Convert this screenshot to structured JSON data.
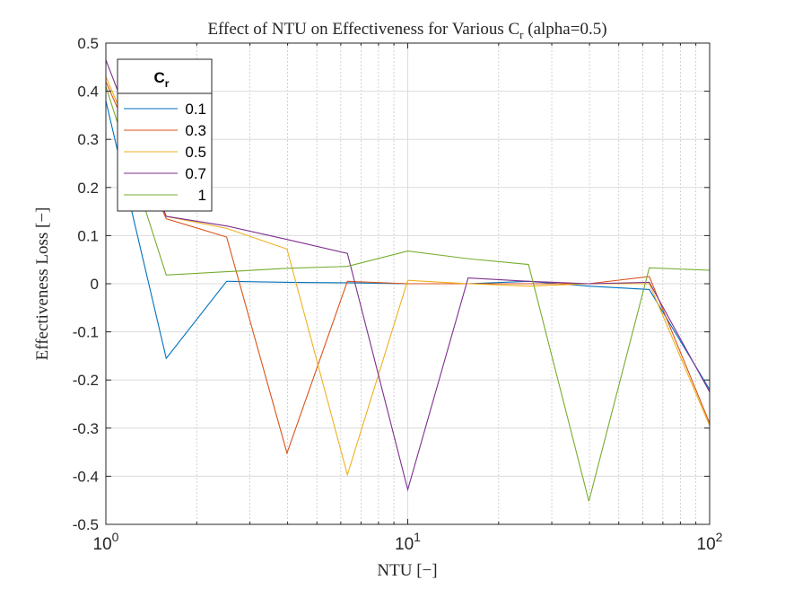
{
  "chart_data": {
    "type": "line",
    "title_main": "Effect of NTU on Effectiveness for Various C",
    "title_sub": "r",
    "title_tail": " (alpha=0.5)",
    "xlabel": "NTU [−]",
    "ylabel": "Effectiveness Loss [−]",
    "xscale": "log",
    "xlim": [
      1,
      100
    ],
    "ylim": [
      -0.5,
      0.5
    ],
    "grid": true,
    "minor_grid_x": true,
    "x_ticks": [
      {
        "base": "10",
        "exp": "0"
      },
      {
        "base": "10",
        "exp": "1"
      },
      {
        "base": "10",
        "exp": "2"
      }
    ],
    "y_ticks": [
      "-0.5",
      "-0.4",
      "-0.3",
      "-0.2",
      "-0.1",
      "0",
      "0.1",
      "0.2",
      "0.3",
      "0.4",
      "0.5"
    ],
    "legend": {
      "title_main": "C",
      "title_sub": "r",
      "placement": "top-left"
    },
    "x": [
      1,
      1.585,
      2.512,
      3.981,
      6.31,
      10,
      15.85,
      25.12,
      39.81,
      63.1,
      100
    ],
    "series": [
      {
        "name": "0.1",
        "color": "#0072BD",
        "values": [
          0.38,
          -0.155,
          0.005,
          0.003,
          0.002,
          0.0,
          0.0,
          0.005,
          -0.005,
          -0.012,
          -0.22
        ]
      },
      {
        "name": "0.3",
        "color": "#D95319",
        "values": [
          0.42,
          0.135,
          0.097,
          -0.352,
          0.005,
          0.0,
          0.0,
          0.0,
          0.0,
          0.015,
          -0.29
        ]
      },
      {
        "name": "0.5",
        "color": "#EDB120",
        "values": [
          0.43,
          0.14,
          0.115,
          0.072,
          -0.397,
          0.007,
          0.0,
          -0.005,
          0.0,
          0.0,
          -0.295
        ]
      },
      {
        "name": "0.7",
        "color": "#7E2F8E",
        "values": [
          0.465,
          0.14,
          0.12,
          0.092,
          0.063,
          -0.428,
          0.012,
          0.005,
          0.0,
          0.003,
          -0.225
        ]
      },
      {
        "name": "1",
        "color": "#77AC30",
        "values": [
          0.41,
          0.018,
          0.025,
          0.032,
          0.036,
          0.068,
          0.052,
          0.04,
          -0.452,
          0.033,
          0.028
        ]
      }
    ]
  }
}
